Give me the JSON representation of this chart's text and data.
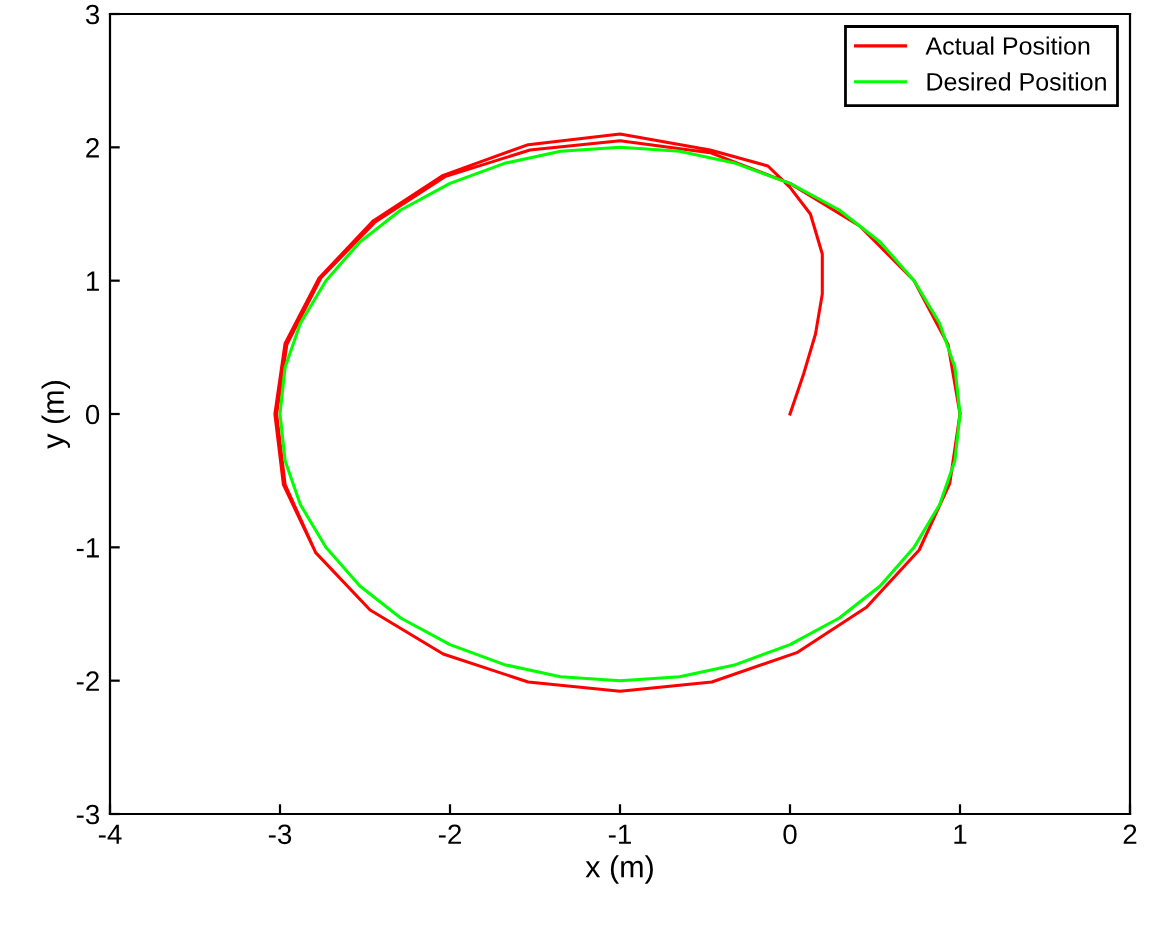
{
  "chart_data": {
    "type": "line",
    "xlabel": "x (m)",
    "ylabel": "y (m)",
    "xlim": [
      -4,
      2
    ],
    "ylim": [
      -3,
      3
    ],
    "xticks": [
      -4,
      -3,
      -2,
      -1,
      0,
      1,
      2
    ],
    "yticks": [
      -3,
      -2,
      -1,
      0,
      1,
      2,
      3
    ],
    "grid": false,
    "legend": "top right",
    "marker": "none",
    "series": [
      {
        "name": "Actual Position",
        "color": "#ff0000",
        "line_style": "solid",
        "x": [
          0,
          0.08,
          0.15,
          0.19,
          0.19,
          0.12,
          0.0,
          -0.13,
          -0.47,
          -1,
          -1.54,
          -2.04,
          -2.45,
          -2.77,
          -2.97,
          -3.03,
          -2.98,
          -2.79,
          -2.47,
          -2.04,
          -1.54,
          -1,
          -0.46,
          0.04,
          0.45,
          0.76,
          0.94,
          1.0,
          0.93,
          0.73,
          0.41,
          0,
          -0.47,
          -1,
          -1.53,
          -2.03,
          -2.44,
          -2.76,
          -2.96,
          -3.02,
          -2.97,
          -2.79,
          -2.47,
          -2.04,
          -1.54,
          -1,
          -0.46,
          0.04,
          0.45,
          0.76,
          0.94,
          1.0
        ],
        "values": [
          0,
          0.3,
          0.6,
          0.9,
          1.2,
          1.5,
          1.7,
          1.86,
          1.98,
          2.1,
          2.02,
          1.79,
          1.45,
          1.02,
          0.53,
          0,
          -0.53,
          -1.04,
          -1.47,
          -1.8,
          -2.01,
          -2.08,
          -2.01,
          -1.79,
          -1.45,
          -1.02,
          -0.52,
          0,
          0.52,
          1.0,
          1.41,
          1.73,
          1.96,
          2.05,
          1.98,
          1.78,
          1.44,
          1.02,
          0.52,
          0,
          -0.53,
          -1.04,
          -1.47,
          -1.8,
          -2.01,
          -2.08,
          -2.01,
          -1.79,
          -1.45,
          -1.02,
          -0.52,
          0
        ]
      },
      {
        "name": "Desired Position",
        "color": "#00ff00",
        "line_style": "solid",
        "x": [
          1,
          0.97,
          0.88,
          0.73,
          0.53,
          0.29,
          0,
          -0.32,
          -0.65,
          -1,
          -1.35,
          -1.68,
          -2,
          -2.29,
          -2.53,
          -2.73,
          -2.88,
          -2.97,
          -3,
          -2.97,
          -2.88,
          -2.73,
          -2.53,
          -2.29,
          -2,
          -1.68,
          -1.35,
          -1,
          -0.65,
          -0.32,
          0,
          0.29,
          0.53,
          0.73,
          0.88,
          0.97,
          1,
          0.97
        ],
        "values": [
          0,
          0.35,
          0.68,
          1.0,
          1.29,
          1.53,
          1.73,
          1.88,
          1.97,
          2,
          1.97,
          1.88,
          1.73,
          1.53,
          1.29,
          1.0,
          0.68,
          0.35,
          0,
          -0.35,
          -0.68,
          -1.0,
          -1.29,
          -1.53,
          -1.73,
          -1.88,
          -1.97,
          -2,
          -1.97,
          -1.88,
          -1.73,
          -1.53,
          -1.29,
          -1.0,
          -0.68,
          -0.35,
          0,
          0.35
        ]
      }
    ]
  }
}
